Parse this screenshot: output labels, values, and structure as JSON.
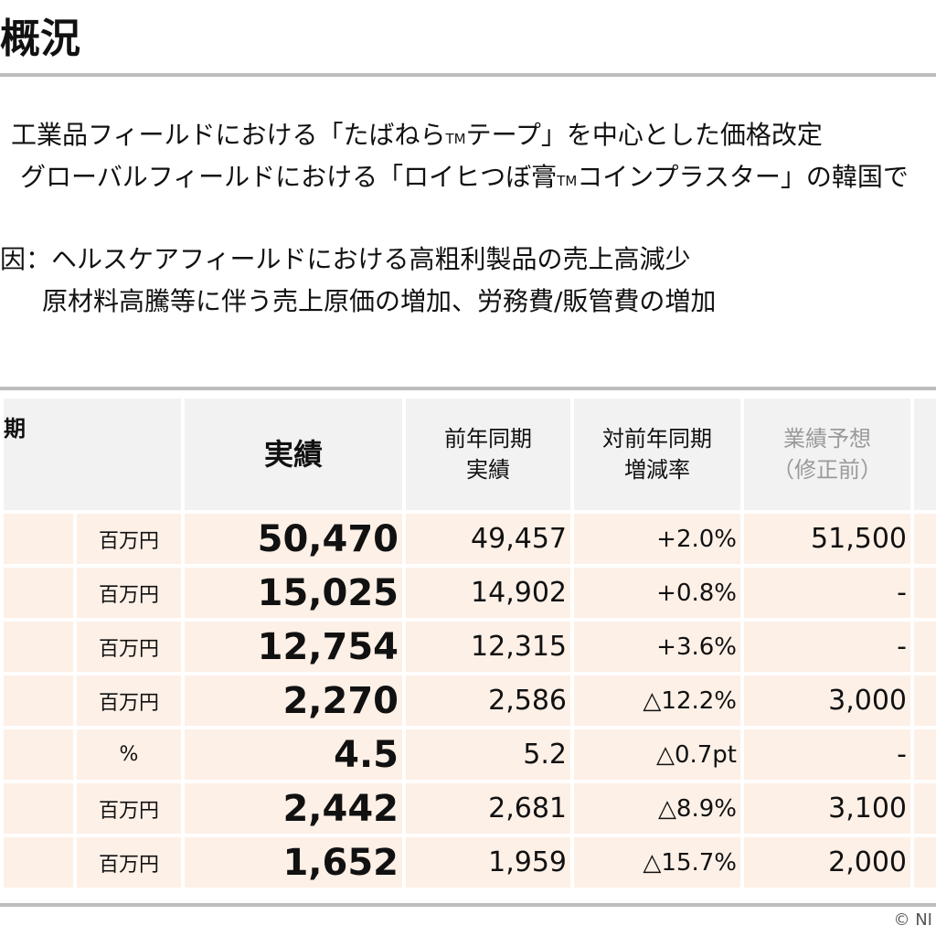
{
  "title": "概況",
  "bullets": [
    {
      "text_before": "工業品フィールドにおける「たばねら",
      "tm": "TM",
      "text_after": "テープ」を中心とした価格改定"
    },
    {
      "text_before": "グローバルフィールドにおける「ロイヒつぼ膏",
      "tm": "TM",
      "text_after": "コインプラスター」の韓国で"
    }
  ],
  "factors": {
    "line1": "因：ヘルスケアフィールドにおける高粗利製品の売上高減少",
    "line2": "原材料高騰等に伴う売上原価の増加、労務費/販管費の増加"
  },
  "table": {
    "headers": {
      "period": "期",
      "actual": "実績",
      "prev_year": "前年同期\n実績",
      "yoy_rate": "対前年同期\n増減率",
      "forecast": "業績予想\n（修正前）"
    },
    "rows": [
      {
        "unit": "百万円",
        "actual": "50,470",
        "prev": "49,457",
        "rate": "+2.0%",
        "forecast": "51,500"
      },
      {
        "unit": "百万円",
        "actual": "15,025",
        "prev": "14,902",
        "rate": "+0.8%",
        "forecast": "-"
      },
      {
        "unit": "百万円",
        "actual": "12,754",
        "prev": "12,315",
        "rate": "+3.6%",
        "forecast": "-"
      },
      {
        "unit": "百万円",
        "actual": "2,270",
        "prev": "2,586",
        "rate": "△12.2%",
        "forecast": "3,000"
      },
      {
        "unit": "%",
        "actual": "4.5",
        "prev": "5.2",
        "rate": "△0.7pt",
        "forecast": "-"
      },
      {
        "unit": "百万円",
        "actual": "2,442",
        "prev": "2,681",
        "rate": "△8.9%",
        "forecast": "3,100"
      },
      {
        "unit": "百万円",
        "actual": "1,652",
        "prev": "1,959",
        "rate": "△15.7%",
        "forecast": "2,000"
      }
    ]
  },
  "copyright": "© NI"
}
